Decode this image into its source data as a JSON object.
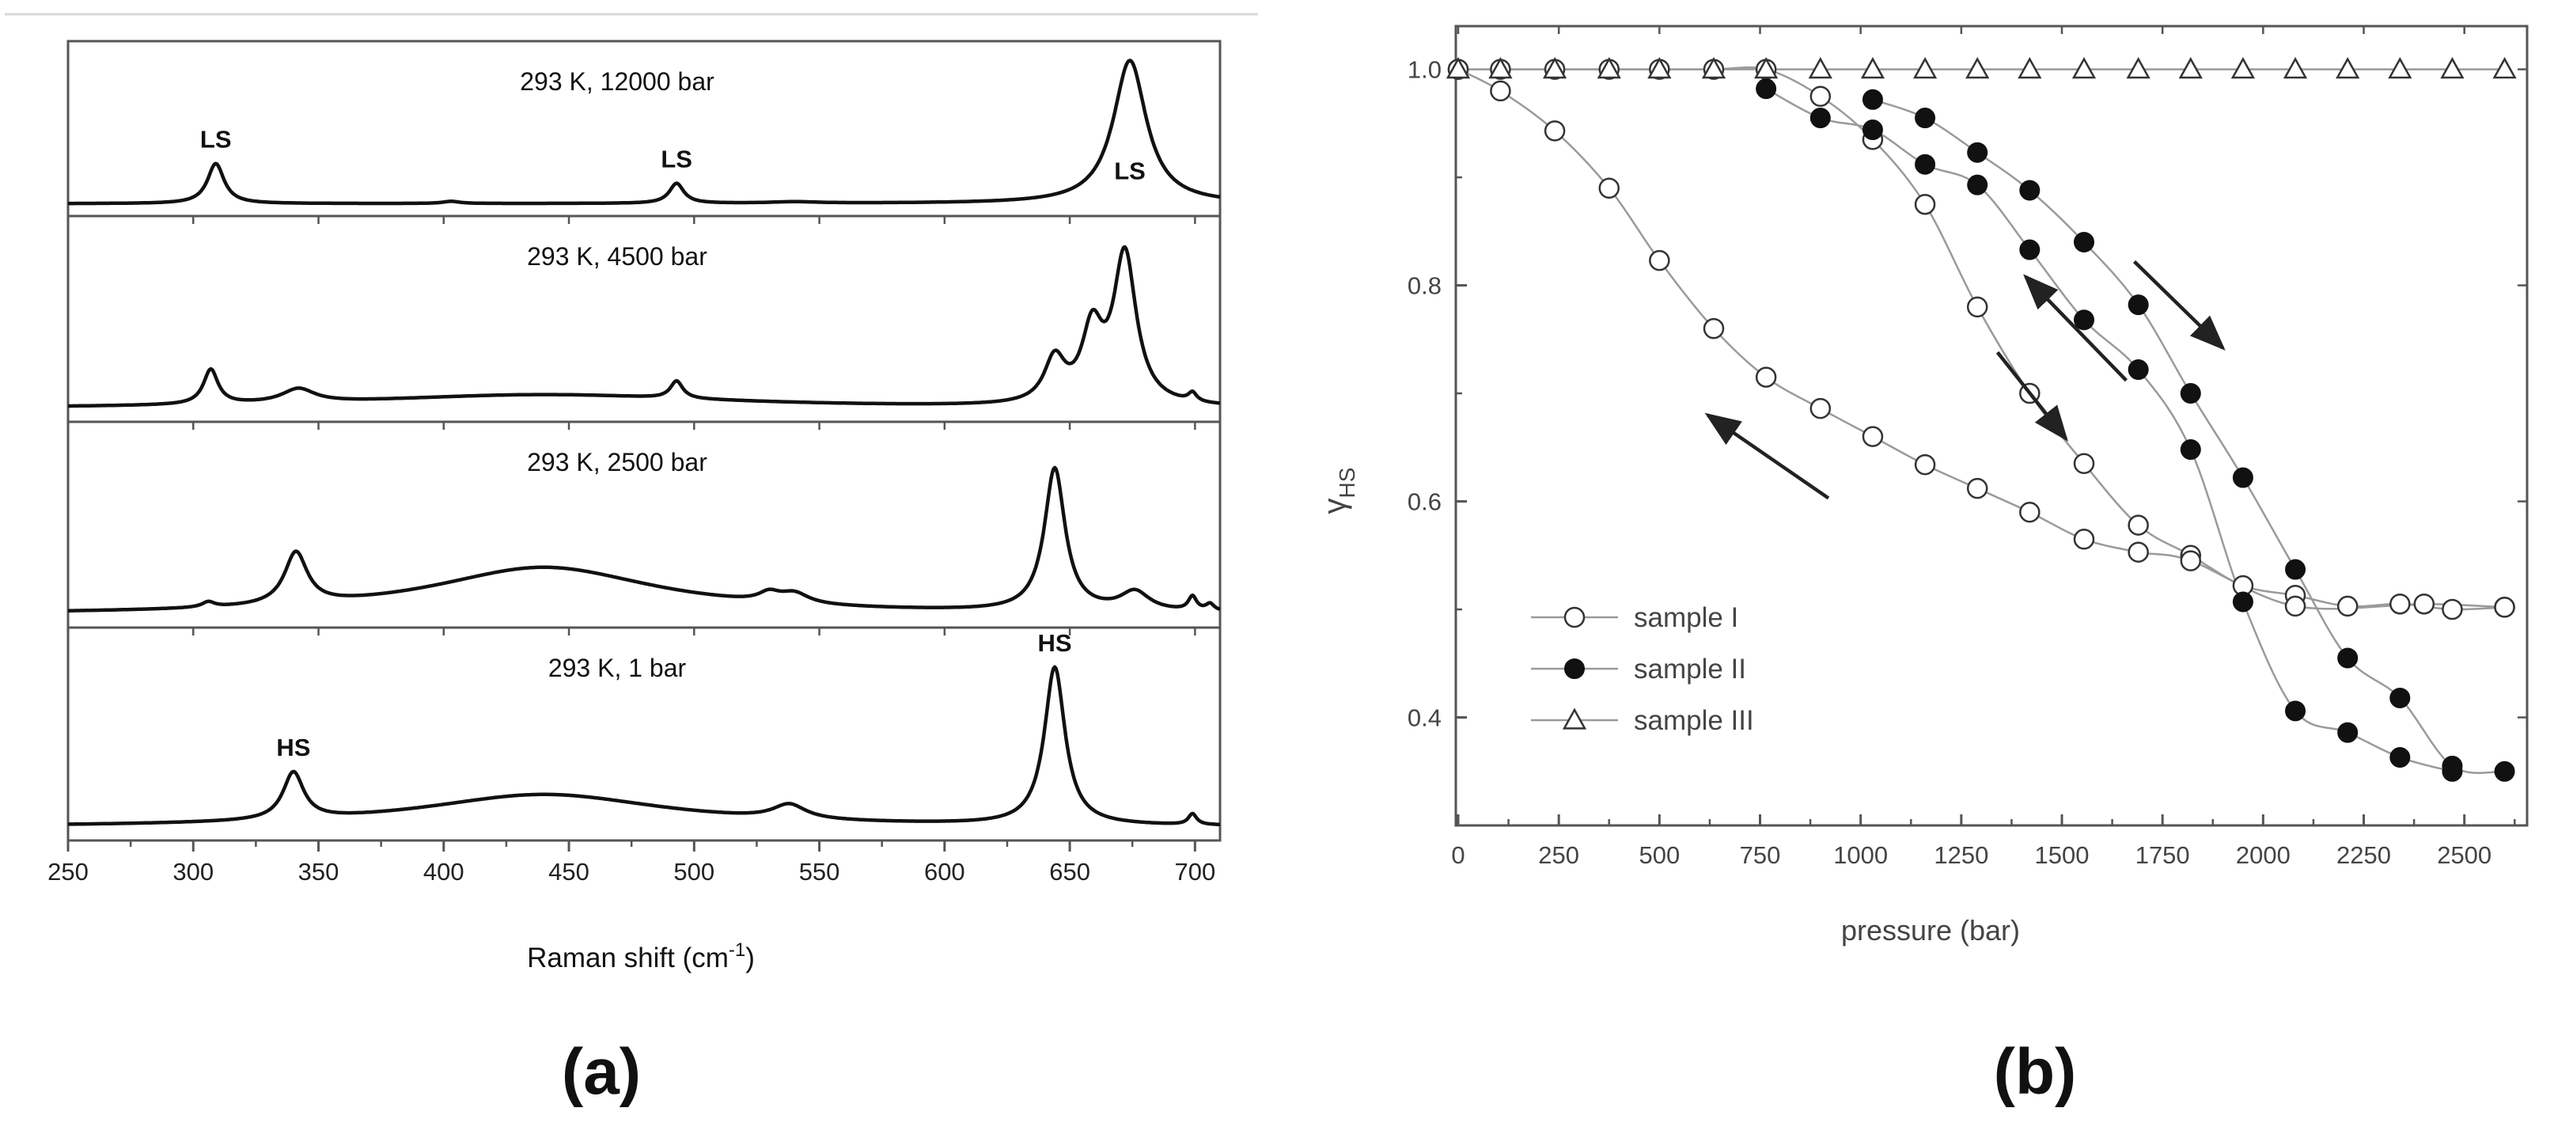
{
  "chart_data": [
    {
      "type": "line",
      "panel_label": "(a)",
      "xlabel": "Raman shift (cm",
      "xlabel_sup": "-1",
      "xlabel_close": ")",
      "xlim": [
        250,
        710
      ],
      "xticks": [
        250,
        300,
        350,
        400,
        450,
        500,
        550,
        600,
        650,
        700
      ],
      "grid": false,
      "stacked_spectra": [
        {
          "label": "293 K, 12000 bar",
          "baseline": 0.02,
          "peaks": [
            {
              "x": 309,
              "h": 0.28,
              "w": 4
            },
            {
              "x": 403,
              "h": 0.015,
              "w": 4
            },
            {
              "x": 493,
              "h": 0.14,
              "w": 3.5
            },
            {
              "x": 540,
              "h": 0.01,
              "w": 12
            },
            {
              "x": 674,
              "h": 1.0,
              "w": 8
            }
          ],
          "annotations": [
            {
              "text": "LS",
              "x": 309
            },
            {
              "text": "LS",
              "x": 493
            },
            {
              "text": "LS",
              "x": 674,
              "inside": true
            }
          ]
        },
        {
          "label": "293 K, 4500 bar",
          "baseline": 0.02,
          "peaks": [
            {
              "x": 307,
              "h": 0.2,
              "w": 3.5
            },
            {
              "x": 342,
              "h": 0.08,
              "w": 8
            },
            {
              "x": 440,
              "h": 0.08,
              "w": 90
            },
            {
              "x": 493,
              "h": 0.1,
              "w": 3
            },
            {
              "x": 644,
              "h": 0.25,
              "w": 5
            },
            {
              "x": 659,
              "h": 0.4,
              "w": 5
            },
            {
              "x": 672,
              "h": 0.86,
              "w": 5.5
            },
            {
              "x": 699,
              "h": 0.05,
              "w": 2
            }
          ],
          "annotations": []
        },
        {
          "label": "293 K, 2500 bar",
          "baseline": 0.02,
          "peaks": [
            {
              "x": 306,
              "h": 0.03,
              "w": 3
            },
            {
              "x": 341,
              "h": 0.3,
              "w": 5.5
            },
            {
              "x": 440,
              "h": 0.27,
              "w": 55
            },
            {
              "x": 530,
              "h": 0.05,
              "w": 5
            },
            {
              "x": 540,
              "h": 0.06,
              "w": 7
            },
            {
              "x": 644,
              "h": 0.82,
              "w": 5
            },
            {
              "x": 676,
              "h": 0.11,
              "w": 7
            },
            {
              "x": 699,
              "h": 0.08,
              "w": 2
            },
            {
              "x": 706,
              "h": 0.04,
              "w": 2
            }
          ],
          "annotations": []
        },
        {
          "label": "293 K, 1 bar",
          "baseline": 0.02,
          "peaks": [
            {
              "x": 340,
              "h": 0.26,
              "w": 5
            },
            {
              "x": 440,
              "h": 0.18,
              "w": 60
            },
            {
              "x": 538,
              "h": 0.08,
              "w": 8
            },
            {
              "x": 644,
              "h": 0.87,
              "w": 5
            },
            {
              "x": 699,
              "h": 0.06,
              "w": 2
            }
          ],
          "annotations": [
            {
              "text": "HS",
              "x": 340
            },
            {
              "text": "HS",
              "x": 644
            }
          ]
        }
      ]
    },
    {
      "type": "line",
      "panel_label": "(b)",
      "xlabel": "pressure (bar)",
      "ylabel": "γ",
      "ylabel_sub": "HS",
      "xlim": [
        0,
        2650
      ],
      "ylim": [
        0.3,
        1.04
      ],
      "xticks": [
        0,
        250,
        500,
        750,
        1000,
        1250,
        1500,
        1750,
        2000,
        2250,
        2500
      ],
      "yticks": [
        0.4,
        0.6,
        0.8,
        1.0
      ],
      "ytick_labels": [
        "0.4",
        "0.6",
        "0.8",
        "1.0"
      ],
      "grid": false,
      "legend_position": "bottom-left",
      "series": [
        {
          "name": "sample I",
          "marker": "open-circle",
          "segments": [
            {
              "x": [
                0,
                105,
                240,
                375,
                500,
                635,
                765,
                900,
                1030,
                1160,
                1290,
                1420,
                1555,
                1690,
                1820,
                1950,
                2080,
                2210,
                2340,
                2470,
                2600
              ],
              "y": [
                1.0,
                1.0,
                1.0,
                1.0,
                1.0,
                1.0,
                1.0,
                0.975,
                0.935,
                0.875,
                0.78,
                0.7,
                0.635,
                0.578,
                0.55,
                0.522,
                0.513,
                0.503,
                0.505,
                0.5,
                0.502
              ]
            },
            {
              "x": [
                2600,
                2400,
                2080,
                1820,
                1690,
                1555,
                1420,
                1290,
                1160,
                1030,
                900,
                765,
                635,
                500,
                375,
                240,
                105,
                0
              ],
              "y": [
                0.502,
                0.505,
                0.503,
                0.545,
                0.553,
                0.565,
                0.59,
                0.612,
                0.634,
                0.66,
                0.686,
                0.715,
                0.76,
                0.823,
                0.89,
                0.943,
                0.98,
                1.0
              ]
            }
          ]
        },
        {
          "name": "sample II",
          "marker": "filled-circle",
          "segments": [
            {
              "x": [
                1030,
                1160,
                1290,
                1420,
                1555,
                1690,
                1820,
                1950,
                2080,
                2210,
                2340,
                2470,
                2600
              ],
              "y": [
                0.972,
                0.955,
                0.923,
                0.888,
                0.84,
                0.782,
                0.7,
                0.622,
                0.537,
                0.455,
                0.418,
                0.355,
                0.35
              ]
            },
            {
              "x": [
                2470,
                2340,
                2210,
                2080,
                1950,
                1820,
                1690,
                1555,
                1420,
                1290,
                1160,
                1030,
                900,
                765
              ],
              "y": [
                0.35,
                0.363,
                0.386,
                0.406,
                0.507,
                0.648,
                0.722,
                0.768,
                0.833,
                0.893,
                0.912,
                0.944,
                0.955,
                0.982
              ]
            }
          ]
        },
        {
          "name": "sample III",
          "marker": "open-triangle",
          "segments": [
            {
              "x": [
                0,
                105,
                240,
                375,
                500,
                635,
                765,
                900,
                1030,
                1160,
                1290,
                1420,
                1555,
                1690,
                1820,
                1950,
                2080,
                2210,
                2340,
                2470,
                2600
              ],
              "y": [
                1.0,
                1.0,
                1.0,
                1.0,
                1.0,
                1.0,
                1.0,
                1.0,
                1.0,
                1.0,
                1.0,
                1.0,
                1.0,
                1.0,
                1.0,
                1.0,
                1.0,
                1.0,
                1.0,
                1.0,
                1.0
              ]
            }
          ]
        }
      ],
      "arrows": [
        {
          "from": [
            1680,
            0.822
          ],
          "to": [
            1900,
            0.742
          ]
        },
        {
          "from": [
            1340,
            0.738
          ],
          "to": [
            1510,
            0.658
          ]
        },
        {
          "from": [
            1660,
            0.712
          ],
          "to": [
            1410,
            0.808
          ]
        },
        {
          "from": [
            920,
            0.603
          ],
          "to": [
            620,
            0.68
          ]
        }
      ]
    }
  ]
}
